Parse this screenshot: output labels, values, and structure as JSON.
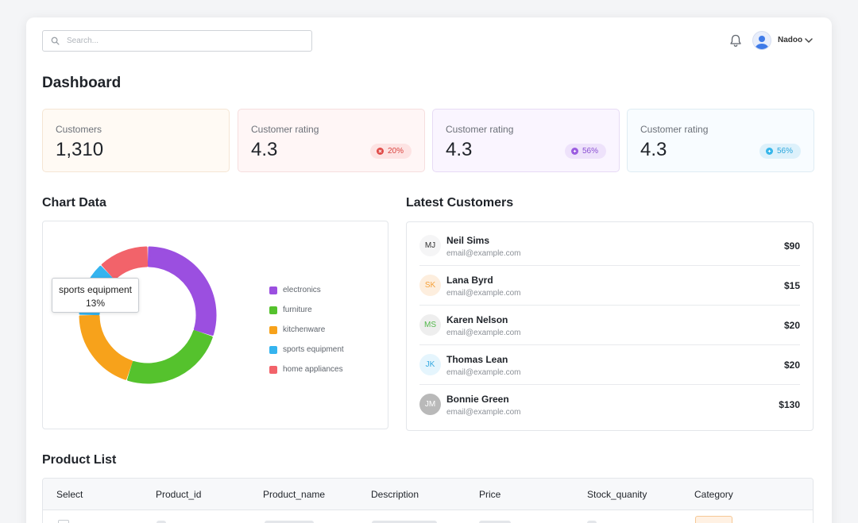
{
  "header": {
    "search_placeholder": "Search...",
    "username": "Nadoo"
  },
  "page_title": "Dashboard",
  "stats": [
    {
      "label": "Customers",
      "value": "1,310"
    },
    {
      "label": "Customer rating",
      "value": "4.3",
      "badge": "20%"
    },
    {
      "label": "Customer rating",
      "value": "4.3",
      "badge": "56%"
    },
    {
      "label": "Customer rating",
      "value": "4.3",
      "badge": "56%"
    }
  ],
  "chart_section_title": "Chart Data",
  "chart_data": {
    "type": "pie",
    "donut": true,
    "categories": [
      "electronics",
      "furniture",
      "kitchenware",
      "sports equipment",
      "home appliances"
    ],
    "values": [
      30,
      25,
      20,
      13,
      12
    ],
    "colors": [
      "#9b4fe0",
      "#55c22d",
      "#f7a21b",
      "#35b4ef",
      "#f2636a"
    ],
    "legend_position": "right",
    "tooltip": {
      "label": "sports equipment",
      "value": "13%"
    }
  },
  "customers_section_title": "Latest Customers",
  "customers": [
    {
      "initials": "MJ",
      "name": "Neil Sims",
      "email": "email@example.com",
      "amount": "$90",
      "bg": "#f5f5f6",
      "fg": "#333333"
    },
    {
      "initials": "SK",
      "name": "Lana Byrd",
      "email": "email@example.com",
      "amount": "$15",
      "bg": "#fdeede",
      "fg": "#f5a13a"
    },
    {
      "initials": "MS",
      "name": "Karen Nelson",
      "email": "email@example.com",
      "amount": "$20",
      "bg": "#eeeeee",
      "fg": "#52b84a"
    },
    {
      "initials": "JK",
      "name": "Thomas Lean",
      "email": "email@example.com",
      "amount": "$20",
      "bg": "#e5f5fd",
      "fg": "#36a9e0"
    },
    {
      "initials": "JM",
      "name": "Bonnie Green",
      "email": "email@example.com",
      "amount": "$130",
      "bg": "#b9b9b9",
      "fg": "#ffffff"
    }
  ],
  "products_section_title": "Product List",
  "product_columns": [
    "Select",
    "Product_id",
    "Product_name",
    "Description",
    "Price",
    "Stock_quanity",
    "Category"
  ]
}
